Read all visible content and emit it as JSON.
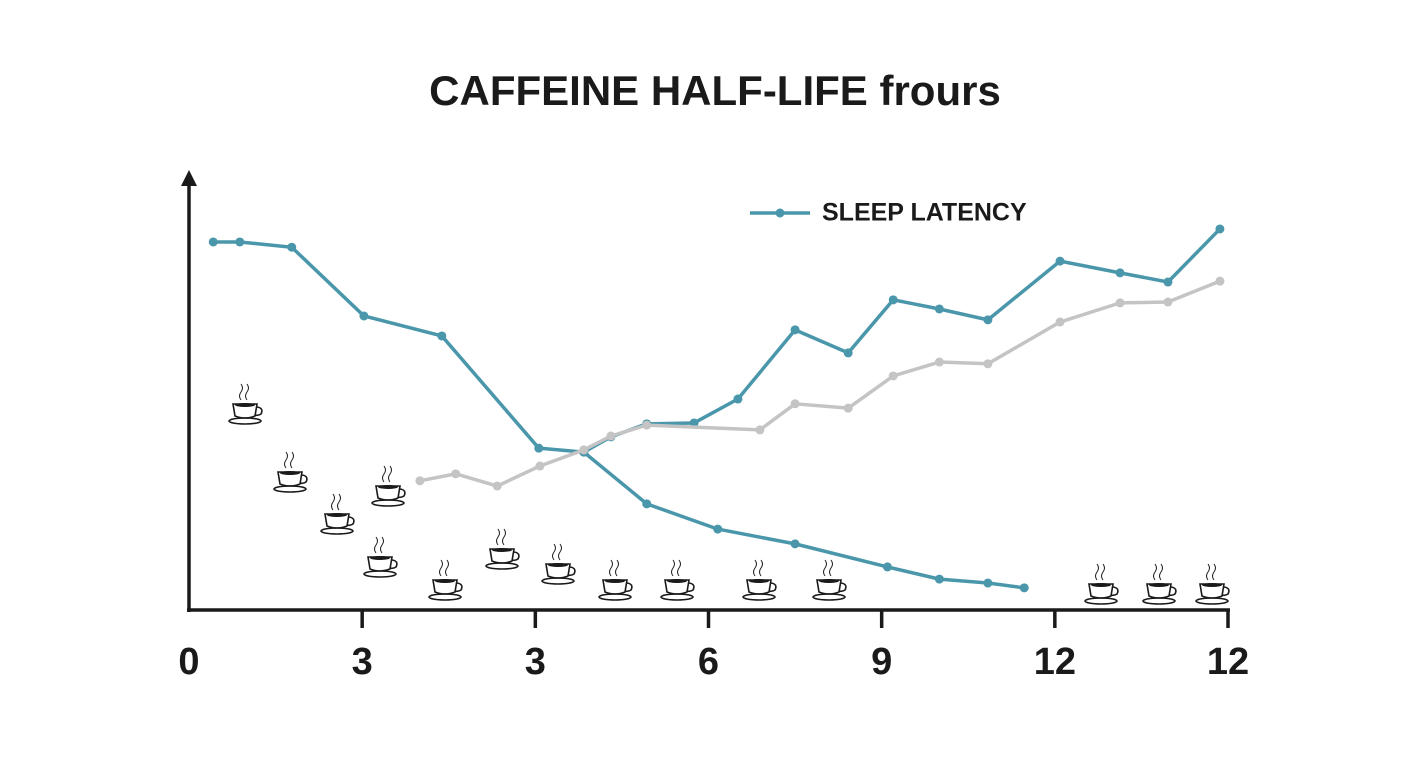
{
  "chart_data": {
    "type": "line",
    "title": "CAFFEINE HALF-LIFE frours",
    "xlim": [
      0,
      18
    ],
    "ylim": [
      0,
      100
    ],
    "xticks": [
      0,
      3,
      {
        "value": 6,
        "label": "3"
      },
      {
        "value": 9,
        "label": "6"
      },
      {
        "value": 12,
        "label": "9"
      },
      {
        "value": 15,
        "label": "12"
      },
      {
        "value": 18,
        "label": "12"
      }
    ],
    "legend": "top-right",
    "series": [
      {
        "name": "SLEEP LATENCY",
        "color": "#4a97ab",
        "x": [
          0.42,
          0.88,
          1.78,
          3.03,
          4.38,
          6.06,
          6.84,
          7.93,
          9.16,
          10.5,
          12.1,
          13.0,
          13.84,
          14.47
        ],
        "values": [
          84.6,
          84.6,
          83.4,
          67.6,
          63.0,
          37.2,
          36.3,
          24.4,
          18.6,
          15.2,
          9.9,
          7.1,
          6.2,
          5.1
        ]
      },
      {
        "color": "#4a97ab",
        "x": [
          6.84,
          7.31,
          7.93,
          8.75,
          9.51,
          10.5,
          11.42,
          12.2,
          13.0,
          13.84,
          15.09,
          16.13,
          16.96,
          17.86
        ],
        "values": [
          36.3,
          39.8,
          42.8,
          43.0,
          48.5,
          64.4,
          59.1,
          71.3,
          69.2,
          66.7,
          80.2,
          77.5,
          75.4,
          87.6
        ]
      },
      {
        "color": "#c4c4c4",
        "x": [
          4.0,
          4.62,
          5.34,
          6.08,
          6.84,
          7.31,
          7.93,
          9.89,
          10.5,
          11.42,
          12.2,
          13.0,
          13.84,
          15.09,
          16.13,
          16.96,
          17.86
        ],
        "values": [
          29.7,
          31.3,
          28.5,
          33.1,
          36.8,
          40.0,
          42.5,
          41.4,
          47.4,
          46.4,
          53.8,
          57.0,
          56.6,
          66.2,
          70.6,
          70.8,
          75.6
        ]
      }
    ]
  }
}
